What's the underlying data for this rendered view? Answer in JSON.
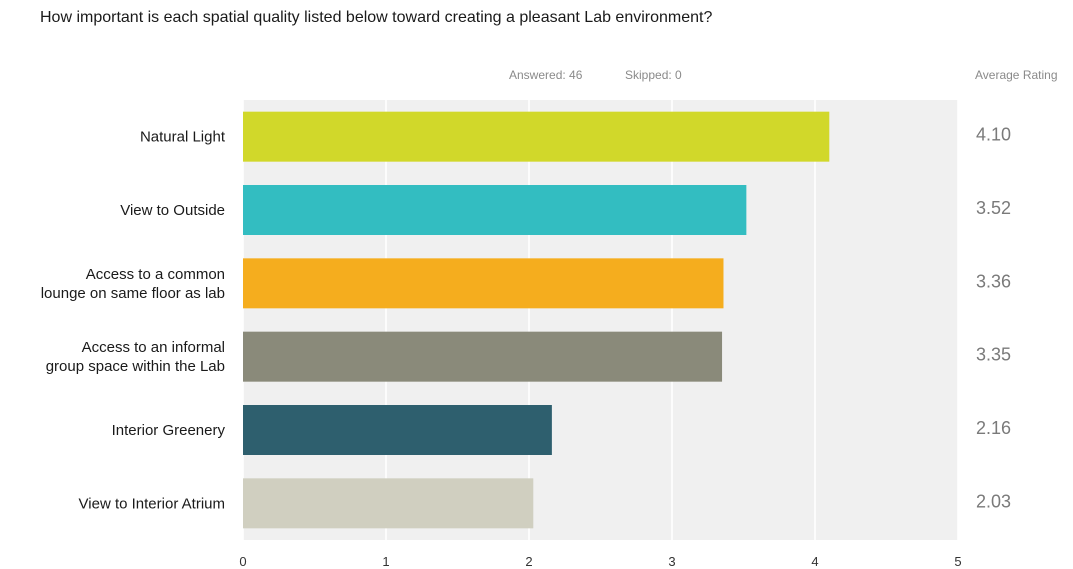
{
  "question": "How important is each spatial quality listed below toward creating a pleasant Lab environment?",
  "stats": {
    "answered": "Answered: 46",
    "skipped": "Skipped: 0"
  },
  "average_header": "Average Rating",
  "chart_data": {
    "type": "bar",
    "orientation": "horizontal",
    "categories": [
      [
        "Natural Light"
      ],
      [
        "View to Outside"
      ],
      [
        "Access to a common",
        "lounge on same floor as lab"
      ],
      [
        "Access to an informal",
        "group space within the Lab"
      ],
      [
        "Interior Greenery"
      ],
      [
        "View to Interior Atrium"
      ]
    ],
    "values": [
      4.1,
      3.52,
      3.36,
      3.35,
      2.16,
      2.03
    ],
    "value_labels": [
      "4.10",
      "3.52",
      "3.36",
      "3.35",
      "2.16",
      "2.03"
    ],
    "colors": [
      "#d1d82a",
      "#33bdc1",
      "#f5ad1e",
      "#8a8a7a",
      "#2e5f6e",
      "#d0cfc0"
    ],
    "xlim": [
      0,
      5
    ],
    "xticks": [
      "0",
      "1",
      "2",
      "3",
      "4",
      "5"
    ],
    "grid": true,
    "plot_background": "#f0f0f0"
  }
}
